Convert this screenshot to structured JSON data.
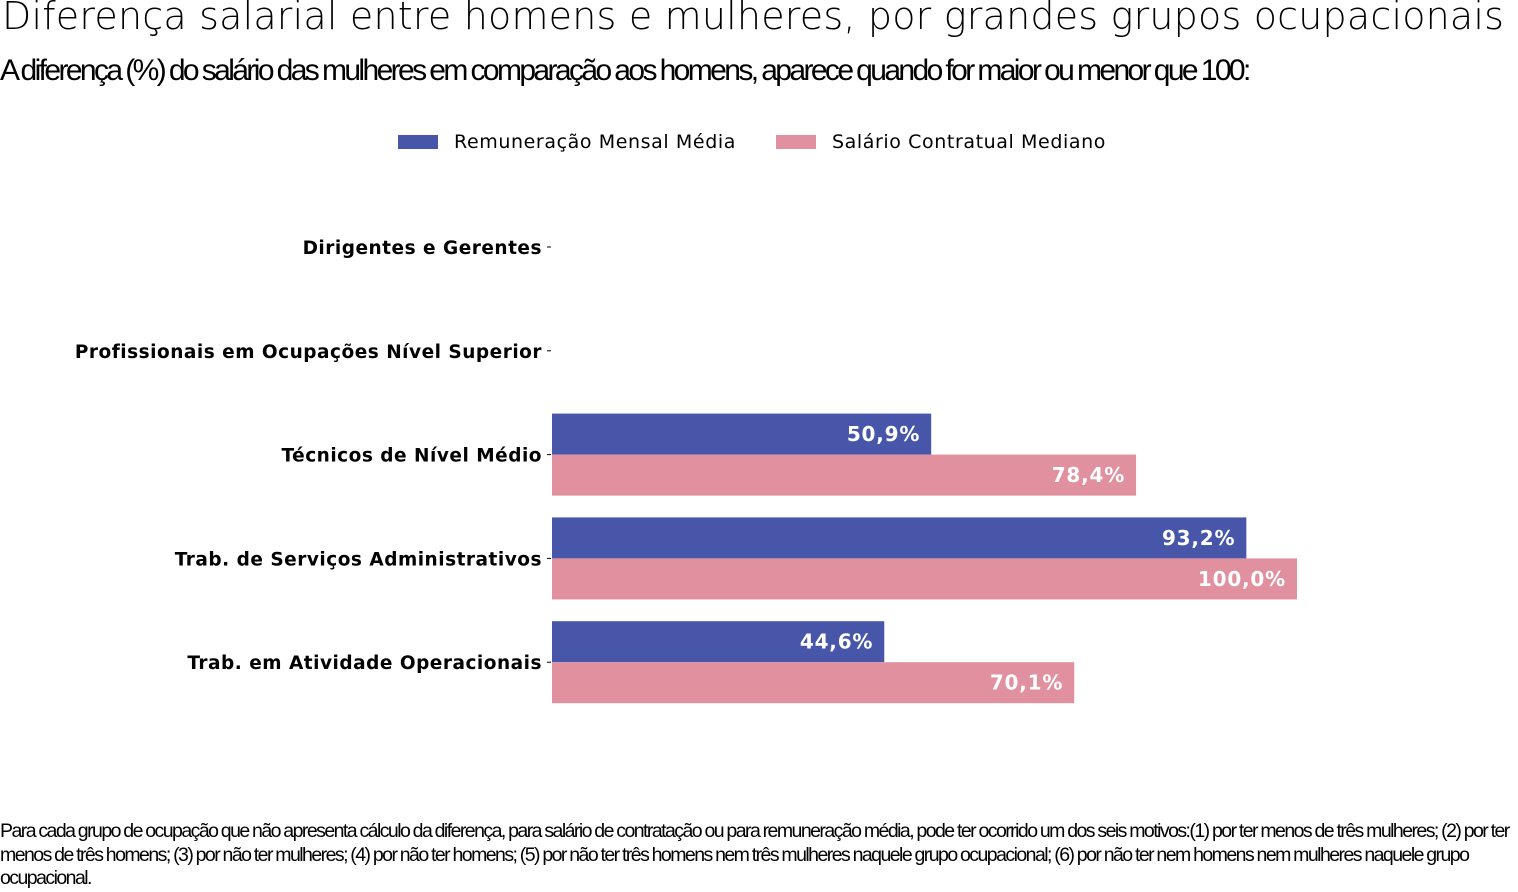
{
  "chart_data": {
    "type": "bar",
    "orientation": "horizontal",
    "title": "Diferença salarial entre homens e mulheres, por grandes grupos ocupacionais",
    "subtitle": "A diferença (%) do salário das mulheres em comparação aos homens, aparece quando for maior ou menor que 100:",
    "categories": [
      "Dirigentes e Gerentes",
      "Profissionais em Ocupações Nível Superior",
      "Técnicos de Nível Médio",
      "Trab. de Serviços Administrativos",
      "Trab. em Atividade Operacionais"
    ],
    "series": [
      {
        "name": "Remuneração Mensal Média",
        "color": "#4756a8",
        "values": [
          null,
          null,
          50.9,
          93.2,
          44.6
        ],
        "labels": [
          "",
          "",
          "50,9%",
          "93,2%",
          "44,6%"
        ]
      },
      {
        "name": "Salário Contratual Mediano",
        "color": "#e0909e",
        "values": [
          null,
          null,
          78.4,
          100.0,
          70.1
        ],
        "labels": [
          "",
          "",
          "78,4%",
          "100,0%",
          "70,1%"
        ]
      }
    ],
    "xlim": [
      0,
      104
    ],
    "legend_position": "top-center",
    "grid": false
  },
  "footnote": "Para cada grupo de ocupação que não apresenta cálculo da diferença, para salário de contratação ou para remuneração média, pode ter ocorrido um dos seis motivos:(1) por ter menos de três mulheres; (2) por ter menos de três homens; (3) por não ter mulheres; (4) por não ter homens; (5) por não ter três homens nem três mulheres naquele grupo ocupacional; (6) por não ter nem homens nem mulheres naquele grupo ocupacional."
}
